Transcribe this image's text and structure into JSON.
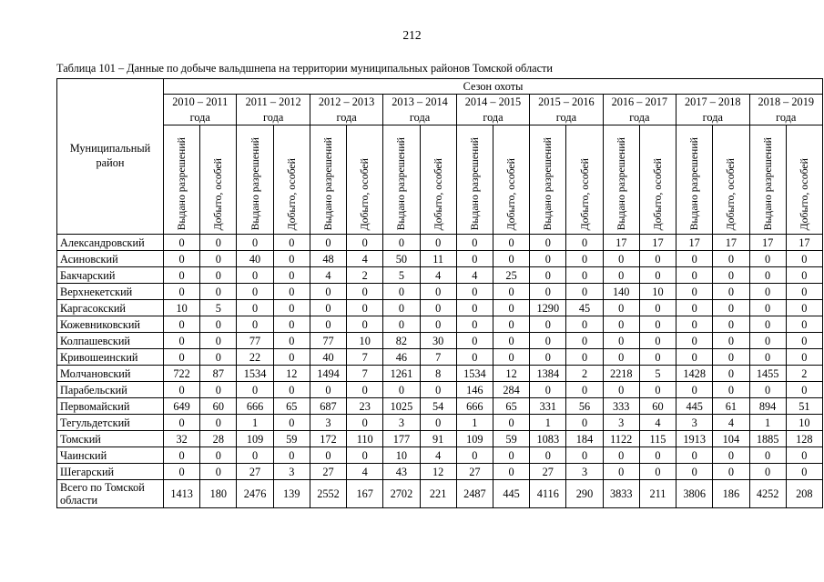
{
  "page": {
    "number": "212"
  },
  "caption": "Таблица 101 – Данные по добыче вальдшнепа на территории муниципальных районов Томской области",
  "table": {
    "season_header": "Сезон охоты",
    "district_header": "Муниципальный район",
    "sub_headers": [
      "Выдано разрешений",
      "Добыто, особей"
    ],
    "seasons": [
      "2010 – 2011 года",
      "2011 – 2012 года",
      "2012 – 2013 года",
      "2013 – 2014 года",
      "2014 – 2015 года",
      "2015 – 2016 года",
      "2016 – 2017 года",
      "2017 – 2018 года",
      "2018 – 2019 года"
    ],
    "rows": [
      {
        "district": "Александровский",
        "values": [
          0,
          0,
          0,
          0,
          0,
          0,
          0,
          0,
          0,
          0,
          0,
          0,
          17,
          17,
          17,
          17,
          17,
          17
        ]
      },
      {
        "district": "Асиновский",
        "values": [
          0,
          0,
          40,
          0,
          48,
          4,
          50,
          11,
          0,
          0,
          0,
          0,
          0,
          0,
          0,
          0,
          0,
          0
        ]
      },
      {
        "district": "Бакчарский",
        "values": [
          0,
          0,
          0,
          0,
          4,
          2,
          5,
          4,
          4,
          25,
          0,
          0,
          0,
          0,
          0,
          0,
          0,
          0
        ]
      },
      {
        "district": "Верхнекетский",
        "values": [
          0,
          0,
          0,
          0,
          0,
          0,
          0,
          0,
          0,
          0,
          0,
          0,
          140,
          10,
          0,
          0,
          0,
          0
        ]
      },
      {
        "district": "Каргасокский",
        "values": [
          10,
          5,
          0,
          0,
          0,
          0,
          0,
          0,
          0,
          0,
          1290,
          45,
          0,
          0,
          0,
          0,
          0,
          0
        ]
      },
      {
        "district": "Кожевниковский",
        "values": [
          0,
          0,
          0,
          0,
          0,
          0,
          0,
          0,
          0,
          0,
          0,
          0,
          0,
          0,
          0,
          0,
          0,
          0
        ]
      },
      {
        "district": "Колпашевский",
        "values": [
          0,
          0,
          77,
          0,
          77,
          10,
          82,
          30,
          0,
          0,
          0,
          0,
          0,
          0,
          0,
          0,
          0,
          0
        ]
      },
      {
        "district": "Кривошеинский",
        "values": [
          0,
          0,
          22,
          0,
          40,
          7,
          46,
          7,
          0,
          0,
          0,
          0,
          0,
          0,
          0,
          0,
          0,
          0
        ]
      },
      {
        "district": "Молчановский",
        "values": [
          722,
          87,
          1534,
          12,
          1494,
          7,
          1261,
          8,
          1534,
          12,
          1384,
          2,
          2218,
          5,
          1428,
          0,
          1455,
          2
        ]
      },
      {
        "district": "Парабельский",
        "values": [
          0,
          0,
          0,
          0,
          0,
          0,
          0,
          0,
          146,
          284,
          0,
          0,
          0,
          0,
          0,
          0,
          0,
          0
        ]
      },
      {
        "district": "Первомайский",
        "values": [
          649,
          60,
          666,
          65,
          687,
          23,
          1025,
          54,
          666,
          65,
          331,
          56,
          333,
          60,
          445,
          61,
          894,
          51
        ]
      },
      {
        "district": "Тегульдетский",
        "values": [
          0,
          0,
          1,
          0,
          3,
          0,
          3,
          0,
          1,
          0,
          1,
          0,
          3,
          4,
          3,
          4,
          1,
          10
        ]
      },
      {
        "district": "Томский",
        "values": [
          32,
          28,
          109,
          59,
          172,
          110,
          177,
          91,
          109,
          59,
          1083,
          184,
          1122,
          115,
          1913,
          104,
          1885,
          128
        ]
      },
      {
        "district": "Чаинский",
        "values": [
          0,
          0,
          0,
          0,
          0,
          0,
          10,
          4,
          0,
          0,
          0,
          0,
          0,
          0,
          0,
          0,
          0,
          0
        ]
      },
      {
        "district": "Шегарский",
        "values": [
          0,
          0,
          27,
          3,
          27,
          4,
          43,
          12,
          27,
          0,
          27,
          3,
          0,
          0,
          0,
          0,
          0,
          0
        ]
      },
      {
        "district": "Всего по Томской области",
        "values": [
          1413,
          180,
          2476,
          139,
          2552,
          167,
          2702,
          221,
          2487,
          445,
          4116,
          290,
          3833,
          211,
          3806,
          186,
          4252,
          208
        ]
      }
    ]
  }
}
